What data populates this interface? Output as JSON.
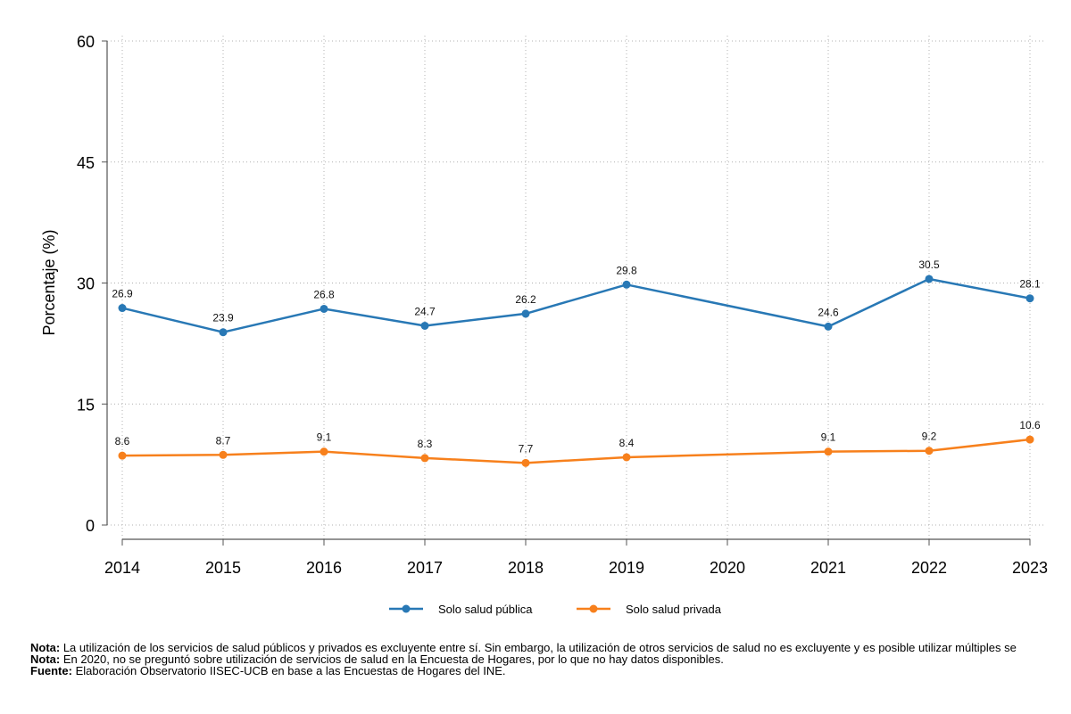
{
  "chart_data": {
    "type": "line",
    "title": "",
    "xlabel": "",
    "ylabel": "Porcentaje (%)",
    "categories": [
      "2014",
      "2015",
      "2016",
      "2017",
      "2018",
      "2019",
      "2020",
      "2021",
      "2022",
      "2023"
    ],
    "ylim": [
      0,
      60
    ],
    "yticks": [
      0,
      15,
      30,
      45,
      60
    ],
    "grid": true,
    "legend_position": "bottom",
    "series": [
      {
        "name": "Solo salud pública",
        "color": "#2878b5",
        "values": [
          26.9,
          23.9,
          26.8,
          24.7,
          26.2,
          29.8,
          null,
          24.6,
          30.5,
          28.1
        ],
        "labels": [
          "26.9",
          "23.9",
          "26.8",
          "24.7",
          "26.2",
          "29.8",
          null,
          "24.6",
          "30.5",
          "28.1"
        ]
      },
      {
        "name": "Solo salud privada",
        "color": "#f7801c",
        "values": [
          8.6,
          8.7,
          9.1,
          8.3,
          7.7,
          8.4,
          null,
          9.1,
          9.2,
          10.6
        ],
        "labels": [
          "8.6",
          "8.7",
          "9.1",
          "8.3",
          "7.7",
          "8.4",
          null,
          "9.1",
          "9.2",
          "10.6"
        ]
      }
    ]
  },
  "notes": [
    {
      "label": "Nota:",
      "text": " La utilización de los servicios de salud públicos y privados es excluyente entre sí. Sin embargo, la utilización de otros servicios de salud no es excluyente y es posible utilizar múltiples se"
    },
    {
      "label": "Nota:",
      "text": " En 2020, no se preguntó sobre utilización de servicios de salud en la Encuesta de Hogares, por lo que no hay datos disponibles."
    },
    {
      "label": "Fuente:",
      "text": " Elaboración Observatorio IISEC-UCB en base a las Encuestas de Hogares del INE."
    }
  ]
}
